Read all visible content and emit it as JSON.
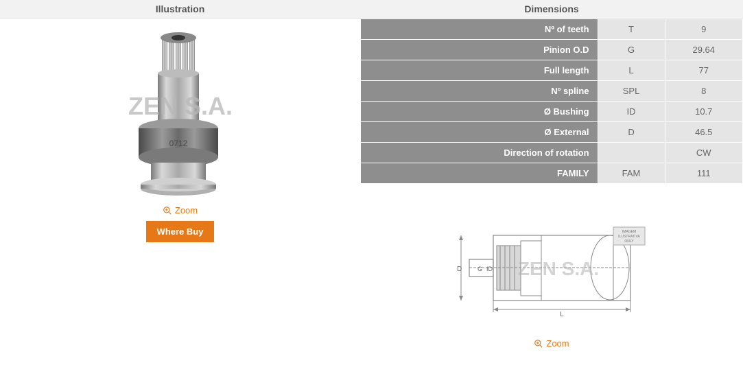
{
  "headers": {
    "illustration": "Illustration",
    "dimensions": "Dimensions"
  },
  "zoom_label": "Zoom",
  "where_buy_label": "Where Buy",
  "watermark": "ZEN S.A.",
  "product_code": "0712",
  "dimensions": {
    "rows": [
      {
        "label": "Nº of teeth",
        "sym": "T",
        "val": "9"
      },
      {
        "label": "Pinion O.D",
        "sym": "G",
        "val": "29.64"
      },
      {
        "label": "Full length",
        "sym": "L",
        "val": "77"
      },
      {
        "label": "Nº spline",
        "sym": "SPL",
        "val": "8"
      },
      {
        "label": "Ø Bushing",
        "sym": "ID",
        "val": "10.7"
      },
      {
        "label": "Ø External",
        "sym": "D",
        "val": "46.5"
      },
      {
        "label": "Direction of rotation",
        "sym": "",
        "val": "CW"
      },
      {
        "label": "FAMILY",
        "sym": "FAM",
        "val": "111"
      }
    ]
  },
  "diagram_badge": {
    "line1": "IMAGEM",
    "line2": "ILUSTRATIVA",
    "line3": "ONLY"
  },
  "diagram_labels": {
    "D": "D",
    "G": "G",
    "ID": "ID",
    "L": "L"
  },
  "colors": {
    "accent": "#e67817",
    "header_bg": "#f2f2f2",
    "header_text": "#555555",
    "row_label_bg": "#8e8e8e",
    "row_label_text": "#ffffff",
    "row_cell_bg": "#e5e5e5",
    "row_cell_text": "#666666",
    "watermark": "#b8b8b8"
  }
}
